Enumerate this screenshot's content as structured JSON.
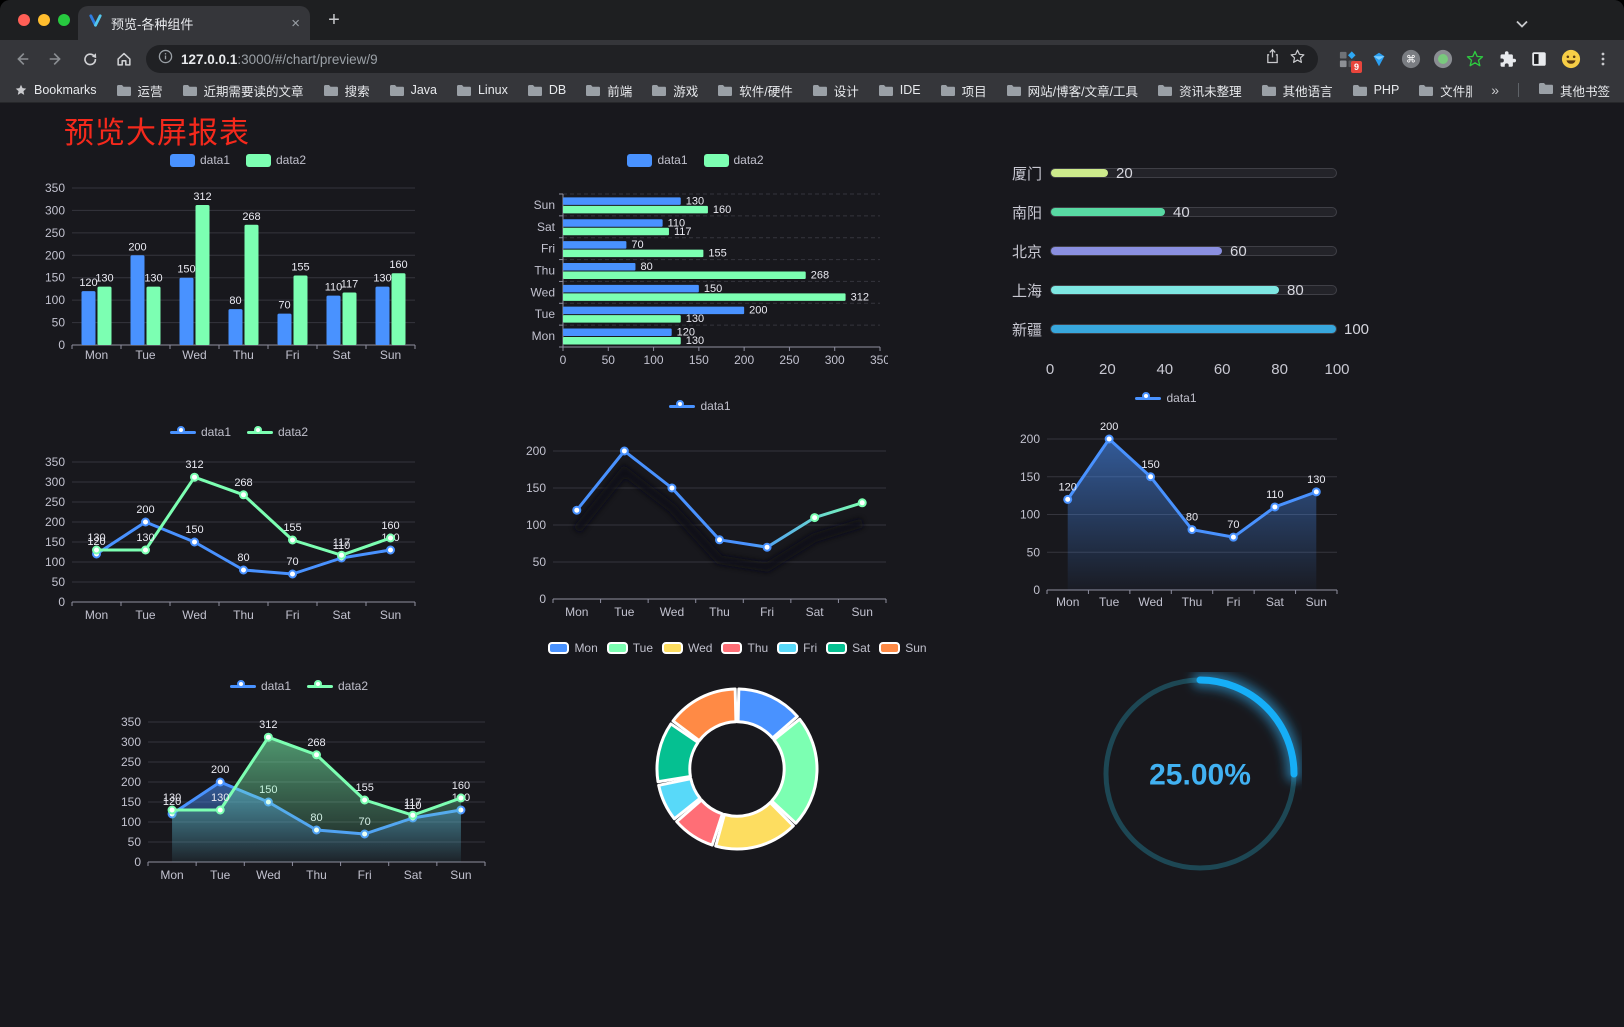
{
  "browser": {
    "tab": {
      "title": "预览-各种组件"
    },
    "glyphs": {
      "close": "×",
      "new_tab": "+",
      "overflow": "»"
    },
    "url": {
      "host": "127.0.0.1",
      "rest": ":3000/#/chart/preview/9"
    },
    "bookmarks_label": "Bookmarks",
    "bookmarks": [
      "运营",
      "近期需要读的文章",
      "搜索",
      "Java",
      "Linux",
      "DB",
      "前端",
      "游戏",
      "软件/硬件",
      "设计",
      "IDE",
      "项目",
      "网站/博客/文章/工具",
      "资讯未整理",
      "其他语言",
      "PHP",
      "文件服务器"
    ],
    "other_bookmarks": "其他书签",
    "extension_badge": "9"
  },
  "page": {
    "title": "预览大屏报表",
    "title_color": "#f5291c"
  },
  "chart_data": [
    {
      "id": "grouped-bar",
      "type": "bar",
      "categories": [
        "Mon",
        "Tue",
        "Wed",
        "Thu",
        "Fri",
        "Sat",
        "Sun"
      ],
      "series": [
        {
          "name": "data1",
          "color": "#4992ff",
          "values": [
            120,
            200,
            150,
            80,
            70,
            110,
            130
          ]
        },
        {
          "name": "data2",
          "color": "#7cffb2",
          "values": [
            130,
            130,
            312,
            268,
            155,
            117,
            160
          ]
        }
      ],
      "ylim": [
        0,
        350
      ],
      "yticks": [
        0,
        50,
        100,
        150,
        200,
        250,
        300,
        350
      ],
      "labels": true,
      "legend_position": "top",
      "grid": true
    },
    {
      "id": "horizontal-bar",
      "type": "bar",
      "orientation": "horizontal",
      "categories": [
        "Mon",
        "Tue",
        "Wed",
        "Thu",
        "Fri",
        "Sat",
        "Sun"
      ],
      "series": [
        {
          "name": "data1",
          "color": "#4992ff",
          "values": [
            120,
            200,
            150,
            80,
            70,
            110,
            130
          ]
        },
        {
          "name": "data2",
          "color": "#7cffb2",
          "values": [
            130,
            130,
            312,
            268,
            155,
            117,
            160
          ]
        }
      ],
      "xlim": [
        0,
        350
      ],
      "xticks": [
        0,
        50,
        100,
        150,
        200,
        250,
        300,
        350
      ],
      "labels": true,
      "legend_position": "top",
      "grid": true
    },
    {
      "id": "city-progress",
      "type": "progress-bars",
      "max": 100,
      "axis_ticks": [
        0,
        20,
        40,
        60,
        80,
        100
      ],
      "items": [
        {
          "label": "厦门",
          "value": 20,
          "color": "#cdea8c"
        },
        {
          "label": "南阳",
          "value": 40,
          "color": "#58d9a3"
        },
        {
          "label": "北京",
          "value": 60,
          "color": "#8a8fe0"
        },
        {
          "label": "上海",
          "value": 80,
          "color": "#7ee7e2"
        },
        {
          "label": "新疆",
          "value": 100,
          "color": "#38a7dc"
        }
      ]
    },
    {
      "id": "multi-line",
      "type": "line",
      "categories": [
        "Mon",
        "Tue",
        "Wed",
        "Thu",
        "Fri",
        "Sat",
        "Sun"
      ],
      "series": [
        {
          "name": "data1",
          "color": "#4992ff",
          "values": [
            120,
            200,
            150,
            80,
            70,
            110,
            130
          ]
        },
        {
          "name": "data2",
          "color": "#7cffb2",
          "values": [
            130,
            130,
            312,
            268,
            155,
            117,
            160
          ]
        }
      ],
      "ylim": [
        0,
        350
      ],
      "yticks": [
        0,
        50,
        100,
        150,
        200,
        250,
        300,
        350
      ],
      "labels": true,
      "legend_position": "top",
      "grid": true
    },
    {
      "id": "gradient-line",
      "type": "line",
      "categories": [
        "Mon",
        "Tue",
        "Wed",
        "Thu",
        "Fri",
        "Sat",
        "Sun"
      ],
      "series": [
        {
          "name": "data1",
          "gradient": [
            "#4992ff",
            "#7cffb2"
          ],
          "color": "#4992ff",
          "values": [
            120,
            200,
            150,
            80,
            70,
            110,
            130
          ]
        }
      ],
      "ylim": [
        0,
        200
      ],
      "yticks": [
        0,
        50,
        100,
        150,
        200
      ],
      "labels": false,
      "legend_position": "top",
      "grid": true,
      "shadow": true
    },
    {
      "id": "area-single",
      "type": "area",
      "categories": [
        "Mon",
        "Tue",
        "Wed",
        "Thu",
        "Fri",
        "Sat",
        "Sun"
      ],
      "series": [
        {
          "name": "data1",
          "color": "#4992ff",
          "values": [
            120,
            200,
            150,
            80,
            70,
            110,
            130
          ]
        }
      ],
      "ylim": [
        0,
        200
      ],
      "yticks": [
        0,
        50,
        100,
        150,
        200
      ],
      "labels": true,
      "legend_position": "top",
      "grid": true
    },
    {
      "id": "area-double",
      "type": "area",
      "categories": [
        "Mon",
        "Tue",
        "Wed",
        "Thu",
        "Fri",
        "Sat",
        "Sun"
      ],
      "series": [
        {
          "name": "data1",
          "color": "#4992ff",
          "values": [
            120,
            200,
            150,
            80,
            70,
            110,
            130
          ]
        },
        {
          "name": "data2",
          "color": "#7cffb2",
          "values": [
            130,
            130,
            312,
            268,
            155,
            117,
            160
          ]
        }
      ],
      "ylim": [
        0,
        350
      ],
      "yticks": [
        0,
        50,
        100,
        150,
        200,
        250,
        300,
        350
      ],
      "labels": true,
      "legend_position": "top",
      "grid": true
    },
    {
      "id": "weekday-donut",
      "type": "pie",
      "inner_radius_ratio": 0.59,
      "legend_position": "top",
      "items": [
        {
          "name": "Mon",
          "value": 120,
          "color": "#4992ff"
        },
        {
          "name": "Tue",
          "value": 200,
          "color": "#7cffb2"
        },
        {
          "name": "Wed",
          "value": 150,
          "color": "#fddd60"
        },
        {
          "name": "Thu",
          "value": 80,
          "color": "#ff6e76"
        },
        {
          "name": "Fri",
          "value": 70,
          "color": "#58d9f9"
        },
        {
          "name": "Sat",
          "value": 110,
          "color": "#05c091"
        },
        {
          "name": "Sun",
          "value": 130,
          "color": "#ff8a45"
        }
      ]
    },
    {
      "id": "percent-gauge",
      "type": "progress-circle",
      "percent": 25,
      "label": "25.00%",
      "color": "#16aef7",
      "track_color": "#1d4754",
      "text_color": "#41b1f2"
    }
  ]
}
